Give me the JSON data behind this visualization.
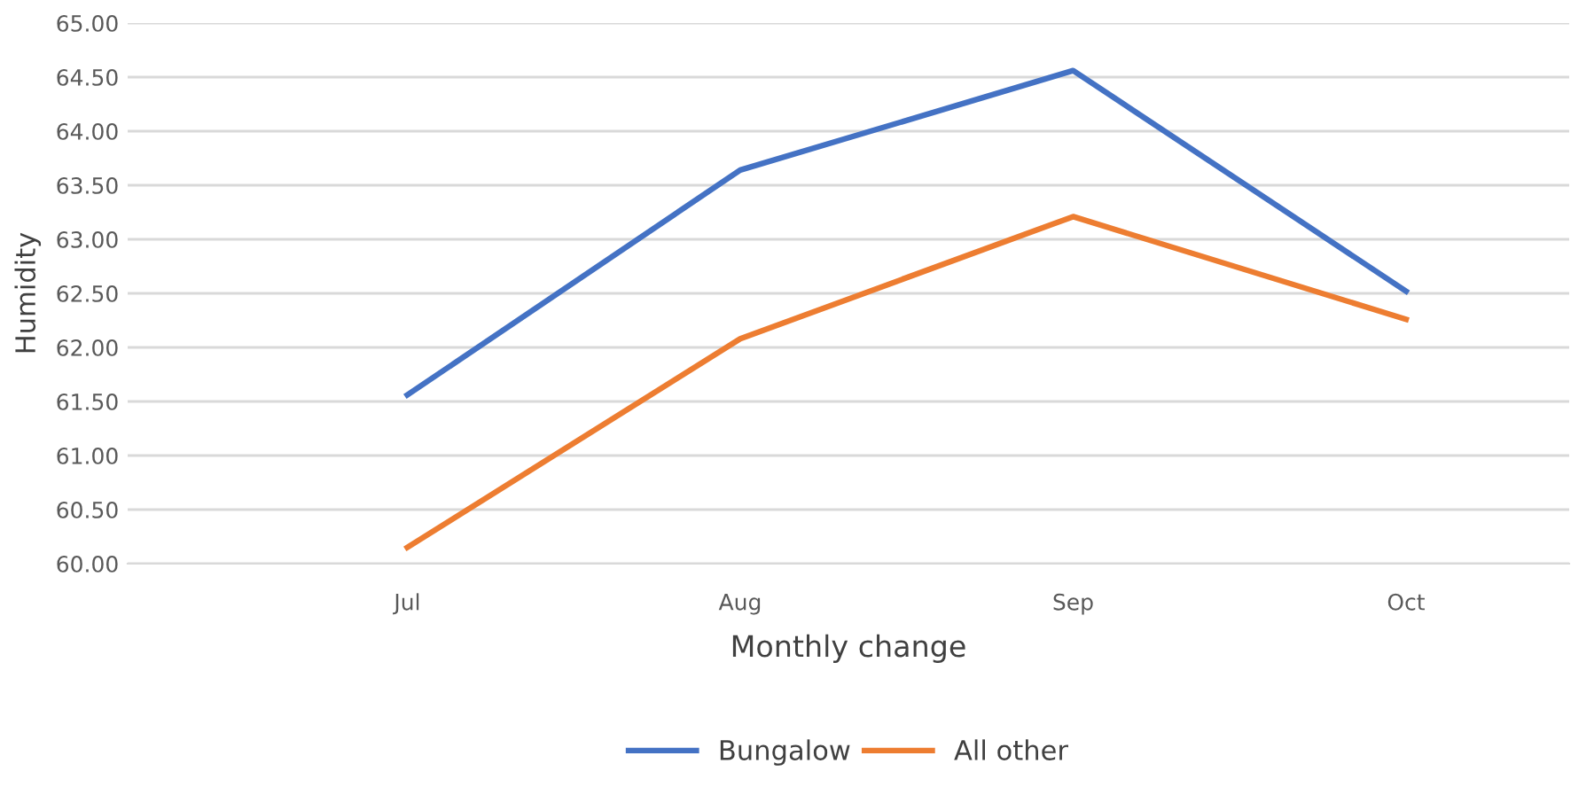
{
  "chart_data": {
    "type": "line",
    "xlabel": "Monthly change",
    "ylabel": "Humidity",
    "categories": [
      "Jul",
      "Aug",
      "Sep",
      "Oct"
    ],
    "series": [
      {
        "name": "Bungalow",
        "color": "#4472c4",
        "values": [
          61.56,
          63.64,
          64.56,
          62.52
        ]
      },
      {
        "name": "All other",
        "color": "#ed7d31",
        "values": [
          60.15,
          62.08,
          63.21,
          62.26
        ]
      }
    ],
    "ylim": [
      60,
      65
    ],
    "yticks": [
      {
        "value": 60,
        "label": "60.00"
      },
      {
        "value": 60.5,
        "label": "60.50"
      },
      {
        "value": 61,
        "label": "61.00"
      },
      {
        "value": 61.5,
        "label": "61.50"
      },
      {
        "value": 62,
        "label": "62.00"
      },
      {
        "value": 62.5,
        "label": "62.50"
      },
      {
        "value": 63,
        "label": "63.00"
      },
      {
        "value": 63.5,
        "label": "63.50"
      },
      {
        "value": 64,
        "label": "64.00"
      },
      {
        "value": 64.5,
        "label": "64.50"
      },
      {
        "value": 65,
        "label": "65.00"
      }
    ],
    "grid": "y",
    "legend": "bottom",
    "marker": "none",
    "line_style": "solid"
  }
}
